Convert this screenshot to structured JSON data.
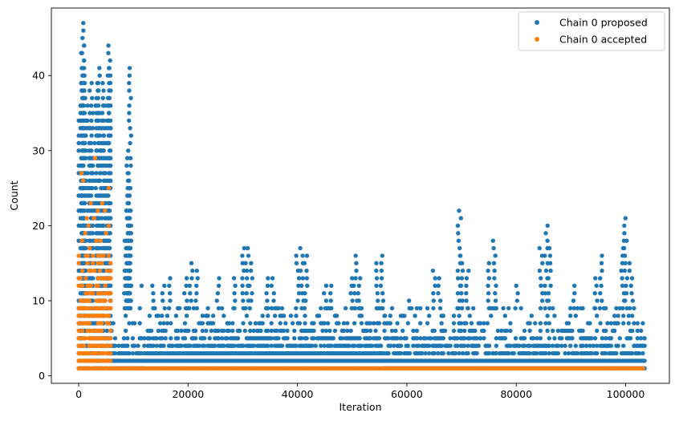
{
  "chart_data": {
    "type": "scatter",
    "title": "",
    "xlabel": "Iteration",
    "ylabel": "Count",
    "xlim": [
      -5000,
      108000
    ],
    "ylim": [
      -1,
      49
    ],
    "xticks": [
      0,
      20000,
      40000,
      60000,
      80000,
      100000
    ],
    "xtick_labels": [
      "0",
      "20000",
      "40000",
      "60000",
      "80000",
      "100000"
    ],
    "yticks": [
      0,
      10,
      20,
      30,
      40
    ],
    "ytick_labels": [
      "0",
      "10",
      "20",
      "30",
      "40"
    ],
    "grid": false,
    "legend_position": "top-right",
    "series": [
      {
        "name": "Chain 0 proposed",
        "color": "#1f77b4",
        "marker": "circle",
        "bands": [
          {
            "x_start": 0,
            "x_end": 6000,
            "y_min": 1,
            "y_max": 36
          },
          {
            "x_start": 6000,
            "x_end": 12000,
            "y_min": 1,
            "y_max": 12
          },
          {
            "x_start": 12000,
            "x_end": 56000,
            "y_min": 2,
            "y_max": 9
          },
          {
            "x_start": 56000,
            "x_end": 103500,
            "y_min": 1,
            "y_max": 9
          }
        ],
        "outliers": [
          [
            700,
            47
          ],
          [
            700,
            44
          ],
          [
            5500,
            44
          ],
          [
            800,
            41
          ],
          [
            3800,
            41
          ],
          [
            5600,
            41
          ],
          [
            9300,
            41
          ],
          [
            1000,
            40
          ],
          [
            2200,
            39
          ],
          [
            3400,
            39
          ],
          [
            4600,
            39
          ],
          [
            800,
            38
          ],
          [
            9000,
            29
          ],
          [
            9100,
            26
          ],
          [
            9200,
            25
          ],
          [
            9300,
            22
          ],
          [
            9300,
            21
          ],
          [
            9000,
            19
          ],
          [
            8700,
            18
          ],
          [
            8500,
            17
          ],
          [
            13500,
            12
          ],
          [
            15500,
            12
          ],
          [
            16500,
            13
          ],
          [
            19500,
            13
          ],
          [
            20500,
            15
          ],
          [
            21500,
            14
          ],
          [
            25500,
            13
          ],
          [
            28500,
            13
          ],
          [
            30000,
            17
          ],
          [
            30800,
            17
          ],
          [
            31500,
            15
          ],
          [
            34500,
            13
          ],
          [
            35500,
            13
          ],
          [
            40000,
            16
          ],
          [
            40800,
            17
          ],
          [
            41500,
            16
          ],
          [
            45000,
            12
          ],
          [
            46000,
            12
          ],
          [
            50000,
            13
          ],
          [
            50600,
            16
          ],
          [
            51200,
            13
          ],
          [
            54500,
            15
          ],
          [
            55500,
            16
          ],
          [
            60500,
            10
          ],
          [
            65000,
            14
          ],
          [
            66000,
            13
          ],
          [
            69600,
            22
          ],
          [
            70000,
            16
          ],
          [
            71000,
            14
          ],
          [
            75000,
            15
          ],
          [
            76000,
            18
          ],
          [
            80000,
            12
          ],
          [
            84500,
            17
          ],
          [
            85500,
            20
          ],
          [
            86000,
            17
          ],
          [
            90500,
            12
          ],
          [
            94500,
            13
          ],
          [
            95500,
            16
          ],
          [
            99500,
            18
          ],
          [
            100000,
            21
          ],
          [
            101000,
            15
          ]
        ]
      },
      {
        "name": "Chain 0 accepted",
        "color": "#ff7f0e",
        "marker": "circle",
        "bands": [
          {
            "x_start": 0,
            "x_end": 6000,
            "y_min": 1,
            "y_max": 16
          },
          {
            "x_start": 6000,
            "x_end": 103500,
            "y_min": 1,
            "y_max": 1
          }
        ],
        "outliers": [
          [
            500,
            27
          ],
          [
            3000,
            29
          ],
          [
            2200,
            23
          ],
          [
            4300,
            23
          ],
          [
            5500,
            25
          ],
          [
            800,
            26
          ],
          [
            1500,
            21
          ],
          [
            2800,
            21
          ],
          [
            1200,
            19
          ],
          [
            3500,
            22
          ],
          [
            4800,
            22
          ],
          [
            5500,
            20
          ],
          [
            600,
            18
          ],
          [
            2000,
            17
          ],
          [
            4000,
            18
          ],
          [
            5000,
            19
          ],
          [
            1800,
            20
          ],
          [
            3200,
            18
          ]
        ]
      }
    ]
  }
}
